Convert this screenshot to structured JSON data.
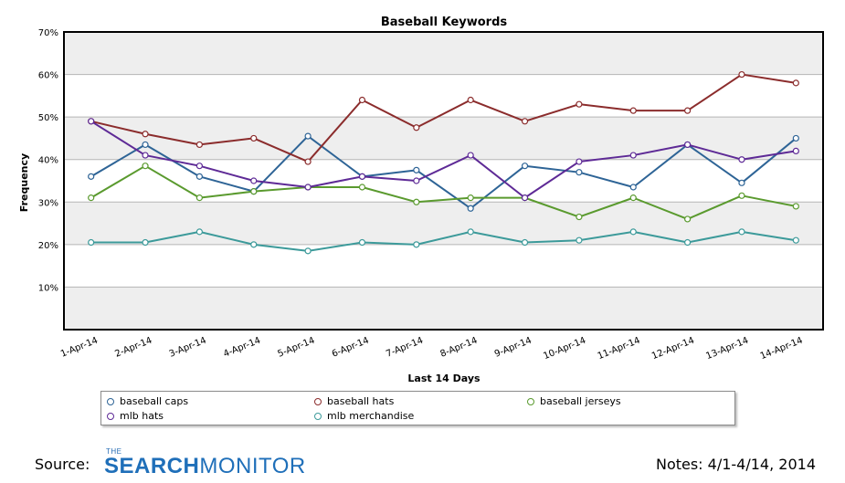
{
  "chart_data": {
    "type": "line",
    "title": "Baseball Keywords",
    "xlabel": "Last 14 Days",
    "ylabel": "Frequency",
    "ylim": [
      0,
      70
    ],
    "ytick_values": [
      10,
      20,
      30,
      40,
      50,
      60,
      70
    ],
    "ytick_labels": [
      "10%",
      "20%",
      "30%",
      "40%",
      "50%",
      "60%",
      "70%"
    ],
    "categories": [
      "1-Apr-14",
      "2-Apr-14",
      "3-Apr-14",
      "4-Apr-14",
      "5-Apr-14",
      "6-Apr-14",
      "7-Apr-14",
      "8-Apr-14",
      "9-Apr-14",
      "10-Apr-14",
      "11-Apr-14",
      "12-Apr-14",
      "13-Apr-14",
      "14-Apr-14"
    ],
    "grid": "horizontal",
    "legend_position": "bottom",
    "series": [
      {
        "name": "baseball caps",
        "color": "#2e6496",
        "values": [
          36,
          43.5,
          36,
          32.5,
          45.5,
          36,
          37.5,
          28.5,
          38.5,
          37,
          33.5,
          43.5,
          34.5,
          45
        ]
      },
      {
        "name": "baseball hats",
        "color": "#8b2c2c",
        "values": [
          49,
          46,
          43.5,
          45,
          39.5,
          54,
          47.5,
          54,
          49,
          53,
          51.5,
          51.5,
          60,
          58
        ]
      },
      {
        "name": "baseball jerseys",
        "color": "#5a9a2e",
        "values": [
          31,
          38.5,
          31,
          32.5,
          33.5,
          33.5,
          30,
          31,
          31,
          26.5,
          31,
          26,
          31.5,
          29
        ]
      },
      {
        "name": "mlb hats",
        "color": "#5e2a96",
        "values": [
          49,
          41,
          38.5,
          35,
          33.5,
          36,
          35,
          41,
          31,
          39.5,
          41,
          43.5,
          40,
          42
        ]
      },
      {
        "name": "mlb merchandise",
        "color": "#3c9a9a",
        "values": [
          20.5,
          20.5,
          23,
          20,
          18.5,
          20.5,
          20,
          23,
          20.5,
          21,
          23,
          20.5,
          23,
          21
        ]
      }
    ]
  },
  "footer": {
    "source_label": "Source:",
    "brand_the": "THE",
    "brand_part1": "SEARCH",
    "brand_part2": "MONITOR",
    "notes": "Notes:  4/1-4/14, 2014"
  }
}
